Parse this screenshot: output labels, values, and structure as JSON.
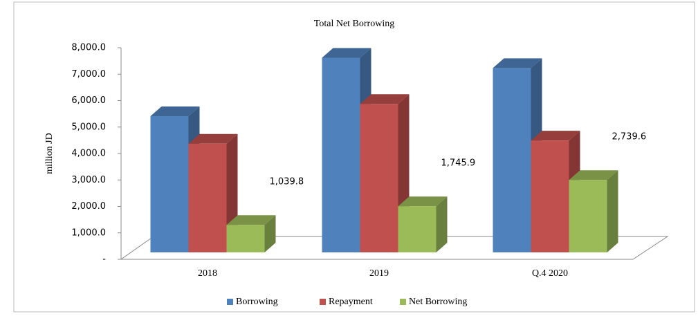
{
  "chart_data": {
    "type": "bar3d",
    "title": "Total Net Borrowing",
    "ylabel": "million JD",
    "categories": [
      "2018",
      "2019",
      "Q.4 2020"
    ],
    "series": [
      {
        "name": "Borrowing",
        "color": "#4f81bd",
        "values": [
          5150,
          7360,
          6970
        ]
      },
      {
        "name": "Repayment",
        "color": "#c0504d",
        "values": [
          4110,
          5614.1,
          4230.4
        ]
      },
      {
        "name": "Net Borrowing",
        "color": "#9bbb59",
        "values": [
          1039.8,
          1745.9,
          2739.6
        ],
        "value_labels": [
          "1,039.8",
          "1,745.9",
          "2,739.6"
        ]
      }
    ],
    "ylim": [
      0,
      8000
    ],
    "yticks": [
      {
        "value": 0,
        "label": "-"
      },
      {
        "value": 1000,
        "label": "1,000.0"
      },
      {
        "value": 2000,
        "label": "2,000.0"
      },
      {
        "value": 3000,
        "label": "3,000.0"
      },
      {
        "value": 4000,
        "label": "4,000.0"
      },
      {
        "value": 5000,
        "label": "5,000.0"
      },
      {
        "value": 6000,
        "label": "6,000.0"
      },
      {
        "value": 7000,
        "label": "7,000.0"
      },
      {
        "value": 8000,
        "label": "8,000.0"
      }
    ],
    "legend": "bottom"
  }
}
